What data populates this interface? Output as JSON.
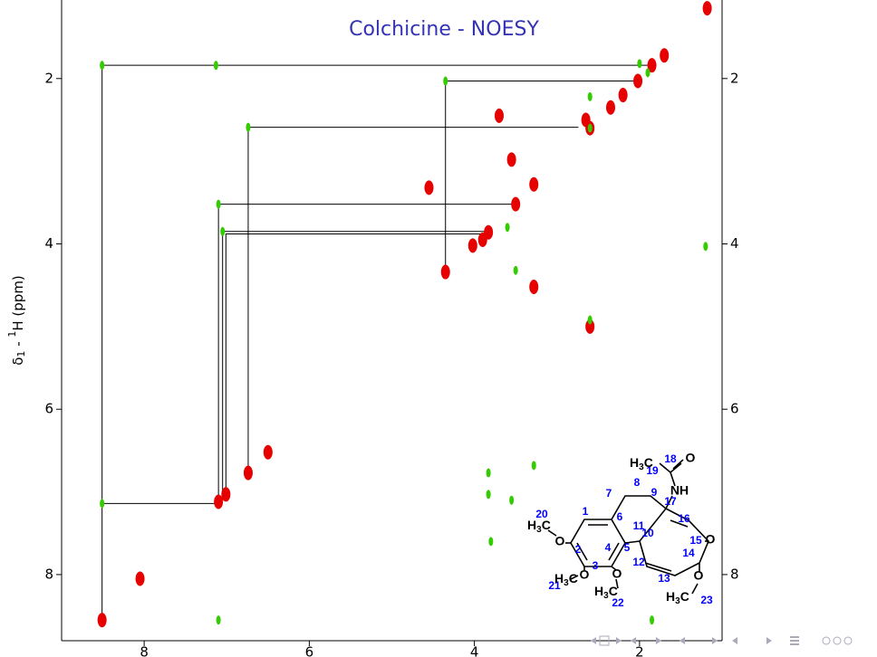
{
  "chart_data": {
    "type": "scatter",
    "title": "Colchicine - NOESY",
    "y_label": {
      "delta": "δ",
      "sub": "1",
      "dash": " - ",
      "sup": "1",
      "rest": "H (ppm)"
    },
    "xlim": [
      9,
      1
    ],
    "ylim": [
      1.05,
      8.8
    ],
    "xticks": [
      8,
      6,
      4,
      2
    ],
    "yticks": [
      2,
      4,
      6,
      8
    ],
    "peak_groups": [
      {
        "color": "#e60000",
        "x": [
          1.18,
          1.85,
          2.02,
          2.2,
          2.35,
          2.6,
          2.65,
          3.28,
          3.5,
          3.83,
          3.9,
          4.02,
          4.35,
          6.74,
          7.01,
          7.1,
          8.51,
          2.6,
          3.28,
          4.55,
          6.5,
          8.05,
          3.55,
          3.7,
          1.7
        ],
        "y": [
          1.15,
          1.84,
          2.03,
          2.2,
          2.35,
          2.6,
          2.5,
          3.28,
          3.52,
          3.86,
          3.95,
          4.02,
          4.34,
          6.77,
          7.03,
          7.12,
          8.55,
          5.0,
          4.52,
          3.32,
          6.52,
          8.05,
          2.98,
          2.45,
          1.72
        ]
      },
      {
        "color": "#33cc00",
        "x": [
          8.51,
          8.51,
          7.13,
          7.1,
          7.05,
          6.74,
          4.35,
          1.2,
          1.85,
          7.1,
          3.5,
          2.6,
          2.6,
          2.6,
          3.83,
          3.83,
          3.55,
          3.28,
          3.8,
          2.0,
          3.6,
          1.9
        ],
        "y": [
          1.84,
          7.14,
          1.84,
          3.52,
          3.85,
          2.59,
          2.03,
          4.03,
          8.55,
          8.55,
          4.32,
          4.92,
          2.22,
          2.6,
          6.77,
          7.03,
          7.1,
          6.68,
          7.6,
          1.82,
          3.8,
          1.93
        ]
      }
    ],
    "connections": [
      {
        "x": [
          8.51,
          8.51,
          1.85
        ],
        "y": [
          8.55,
          1.84,
          1.84
        ]
      },
      {
        "x": [
          8.51,
          7.1
        ],
        "y": [
          7.14,
          7.14
        ]
      },
      {
        "x": [
          4.35,
          4.35,
          2.02
        ],
        "y": [
          4.34,
          2.03,
          2.03
        ]
      },
      {
        "x": [
          6.74,
          6.74,
          2.74
        ],
        "y": [
          6.77,
          2.59,
          2.59
        ]
      },
      {
        "x": [
          7.1,
          7.1,
          3.5
        ],
        "y": [
          7.1,
          3.52,
          3.52
        ]
      },
      {
        "x": [
          7.05,
          7.05,
          3.85
        ],
        "y": [
          7.1,
          3.85,
          3.85
        ]
      },
      {
        "x": [
          7.01,
          7.01,
          3.8
        ],
        "y": [
          7.03,
          3.88,
          3.88
        ]
      }
    ]
  },
  "molecule": {
    "numbers": [
      "1",
      "2",
      "3",
      "4",
      "5",
      "6",
      "7",
      "8",
      "9",
      "10",
      "11",
      "12",
      "13",
      "14",
      "15",
      "16",
      "17",
      "18",
      "19",
      "20",
      "21",
      "22",
      "23"
    ],
    "atoms": [
      "O",
      "O",
      "O",
      "O",
      "O",
      "O",
      "NH"
    ],
    "methyls": [
      [
        "H",
        "3",
        "C"
      ],
      [
        "H",
        "3",
        "C"
      ],
      [
        "H",
        "3",
        "C"
      ],
      [
        "H",
        "3",
        "C"
      ],
      [
        "H",
        "3",
        "C"
      ]
    ]
  }
}
